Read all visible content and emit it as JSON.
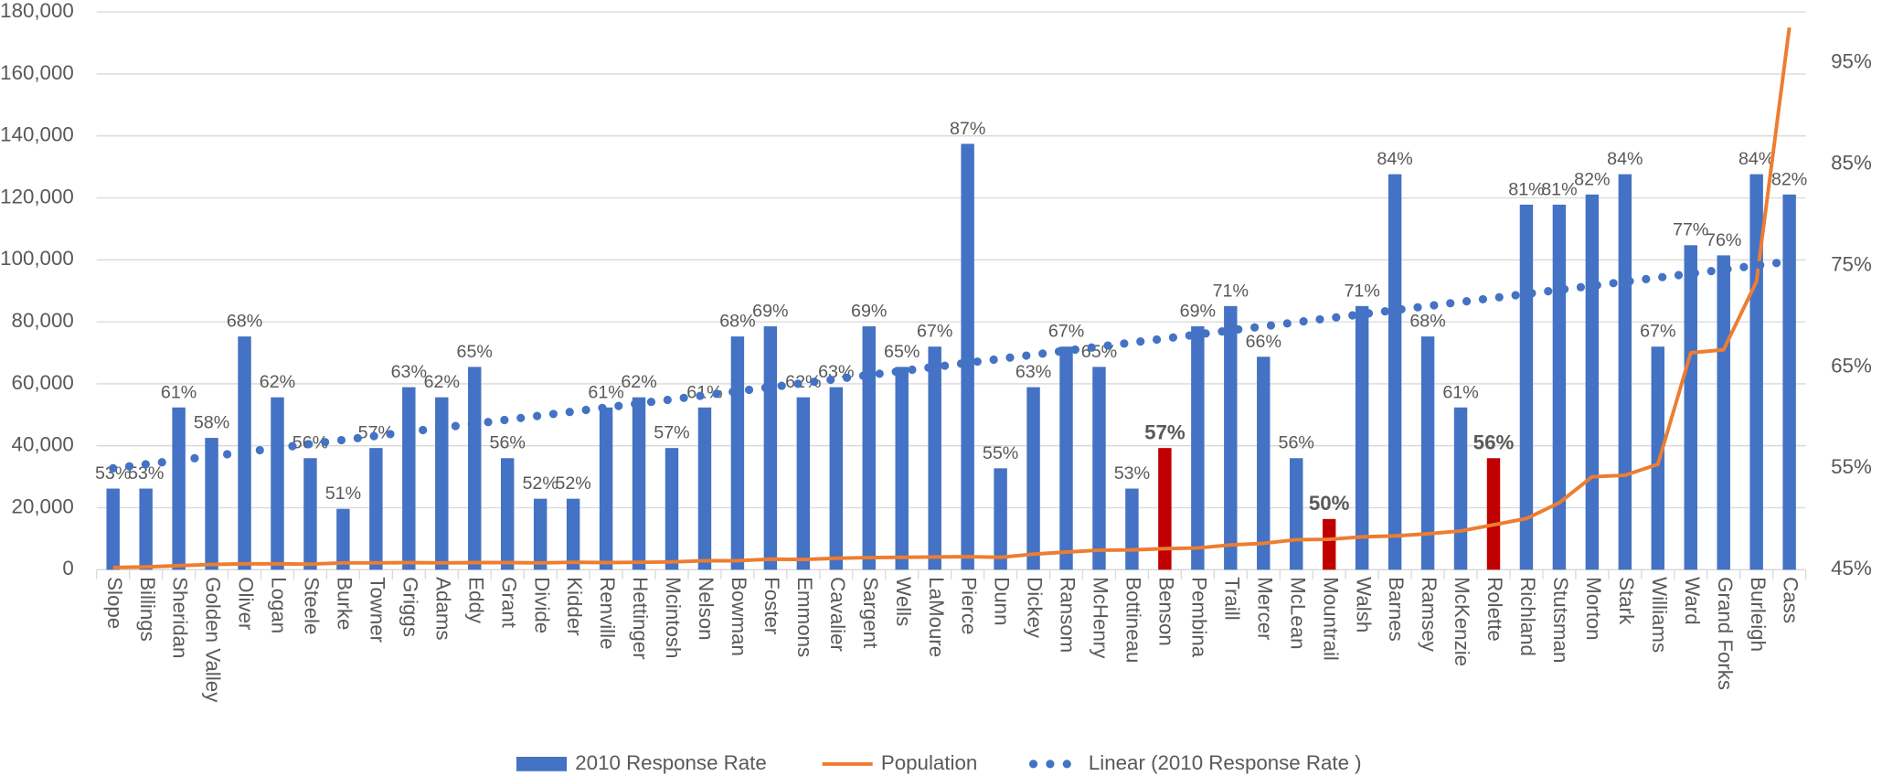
{
  "chart_data": {
    "type": "combo",
    "categories": [
      "Slope",
      "Billings",
      "Sheridan",
      "Golden Valley",
      "Oliver",
      "Logan",
      "Steele",
      "Burke",
      "Towner",
      "Griggs",
      "Adams",
      "Eddy",
      "Grant",
      "Divide",
      "Kidder",
      "Renville",
      "Hettinger",
      "Mcintosh",
      "Nelson",
      "Bowman",
      "Foster",
      "Emmons",
      "Cavalier",
      "Sargent",
      "Wells",
      "LaMoure",
      "Pierce",
      "Dunn",
      "Dickey",
      "Ransom",
      "McHenry",
      "Bottineau",
      "Benson",
      "Pembina",
      "Traill",
      "Mercer",
      "McLean",
      "Mountrail",
      "Walsh",
      "Barnes",
      "Ramsey",
      "McKenzie",
      "Rolette",
      "Richland",
      "Stutsman",
      "Morton",
      "Stark",
      "Williams",
      "Ward",
      "Grand Forks",
      "Burleigh",
      "Cass"
    ],
    "series": [
      {
        "name": "2010 Response Rate",
        "type": "bar",
        "axis": "y2",
        "color": "#4472c4",
        "colors": [
          "#4472c4",
          "#4472c4",
          "#4472c4",
          "#4472c4",
          "#4472c4",
          "#4472c4",
          "#4472c4",
          "#4472c4",
          "#4472c4",
          "#4472c4",
          "#4472c4",
          "#4472c4",
          "#4472c4",
          "#4472c4",
          "#4472c4",
          "#4472c4",
          "#4472c4",
          "#4472c4",
          "#4472c4",
          "#4472c4",
          "#4472c4",
          "#4472c4",
          "#4472c4",
          "#4472c4",
          "#4472c4",
          "#4472c4",
          "#4472c4",
          "#4472c4",
          "#4472c4",
          "#4472c4",
          "#4472c4",
          "#4472c4",
          "#c00000",
          "#4472c4",
          "#4472c4",
          "#4472c4",
          "#4472c4",
          "#c00000",
          "#4472c4",
          "#4472c4",
          "#4472c4",
          "#4472c4",
          "#c00000",
          "#4472c4",
          "#4472c4",
          "#4472c4",
          "#4472c4",
          "#4472c4",
          "#4472c4",
          "#4472c4",
          "#4472c4",
          "#4472c4"
        ],
        "values": [
          53,
          53,
          61,
          58,
          68,
          62,
          56,
          51,
          57,
          63,
          62,
          65,
          56,
          52,
          52,
          61,
          62,
          57,
          61,
          68,
          69,
          62,
          63,
          69,
          65,
          67,
          87,
          55,
          63,
          67,
          65,
          53,
          57,
          69,
          71,
          66,
          56,
          50,
          71,
          84,
          68,
          61,
          56,
          81,
          81,
          82,
          84,
          67,
          77,
          76,
          84,
          82
        ],
        "value_labels": [
          "53%",
          "53%",
          "61%",
          "58%",
          "68%",
          "62%",
          "56%",
          "51%",
          "57%",
          "63%",
          "62%",
          "65%",
          "56%",
          "52%",
          "52%",
          "61%",
          "62%",
          "57%",
          "61%",
          "68%",
          "69%",
          "62%",
          "63%",
          "69%",
          "65%",
          "67%",
          "87%",
          "55%",
          "63%",
          "67%",
          "65%",
          "53%",
          "57%",
          "69%",
          "71%",
          "66%",
          "56%",
          "50%",
          "71%",
          "84%",
          "68%",
          "61%",
          "56%",
          "81%",
          "81%",
          "82%",
          "84%",
          "67%",
          "77%",
          "76%",
          "84%",
          "82%"
        ]
      },
      {
        "name": "Population",
        "type": "line",
        "axis": "y",
        "color": "#ed7d31",
        "values": [
          700,
          900,
          1300,
          1700,
          1900,
          1900,
          1800,
          2200,
          2200,
          2300,
          2200,
          2300,
          2300,
          2200,
          2400,
          2300,
          2400,
          2500,
          2900,
          2900,
          3400,
          3300,
          3700,
          3900,
          4000,
          4100,
          4200,
          4000,
          5000,
          5700,
          6300,
          6400,
          6800,
          7000,
          8000,
          8500,
          9700,
          9800,
          10600,
          10900,
          11600,
          12500,
          14500,
          16500,
          21600,
          30000,
          30500,
          34000,
          70000,
          71000,
          93000,
          175000
        ]
      },
      {
        "name": "Linear (2010 Response Rate )",
        "type": "line",
        "style": "dotted",
        "axis": "y2",
        "color": "#4472c4",
        "values": [
          55.0,
          55.4,
          55.8,
          56.2,
          56.6,
          57.0,
          57.4,
          57.8,
          58.2,
          58.6,
          59.0,
          59.4,
          59.8,
          60.2,
          60.6,
          61.0,
          61.4,
          61.8,
          62.2,
          62.6,
          63.0,
          63.4,
          63.8,
          64.2,
          64.6,
          65.0,
          65.4,
          65.8,
          66.2,
          66.6,
          67.0,
          67.4,
          67.8,
          68.2,
          68.6,
          69.0,
          69.4,
          69.8,
          70.2,
          70.6,
          71.0,
          71.4,
          71.8,
          72.2,
          72.6,
          73.0,
          73.4,
          73.8,
          74.2,
          74.6,
          75.0,
          75.4
        ]
      }
    ],
    "ylim": [
      0,
      180000
    ],
    "yticks": [
      0,
      {
        "value": 20000,
        "label": "20,000"
      },
      {
        "value": 40000,
        "label": "40,000"
      },
      {
        "value": 60000,
        "label": "60,000"
      },
      {
        "value": 80000,
        "label": "80,000"
      },
      {
        "value": 100000,
        "label": "100,000"
      },
      {
        "value": 120000,
        "label": "120,000"
      },
      {
        "value": 140000,
        "label": "140,000"
      },
      {
        "value": 160000,
        "label": "160,000"
      },
      {
        "value": 180000,
        "label": "180,000"
      }
    ],
    "y2lim": [
      45,
      100
    ],
    "y2ticks": [
      {
        "value": 45,
        "label": "45%"
      },
      {
        "value": 55,
        "label": "55%"
      },
      {
        "value": 65,
        "label": "65%"
      },
      {
        "value": 75,
        "label": "75%"
      },
      {
        "value": 85,
        "label": "85%"
      },
      {
        "value": 95,
        "label": "95%"
      }
    ],
    "grid": true,
    "legend": "bottom"
  }
}
